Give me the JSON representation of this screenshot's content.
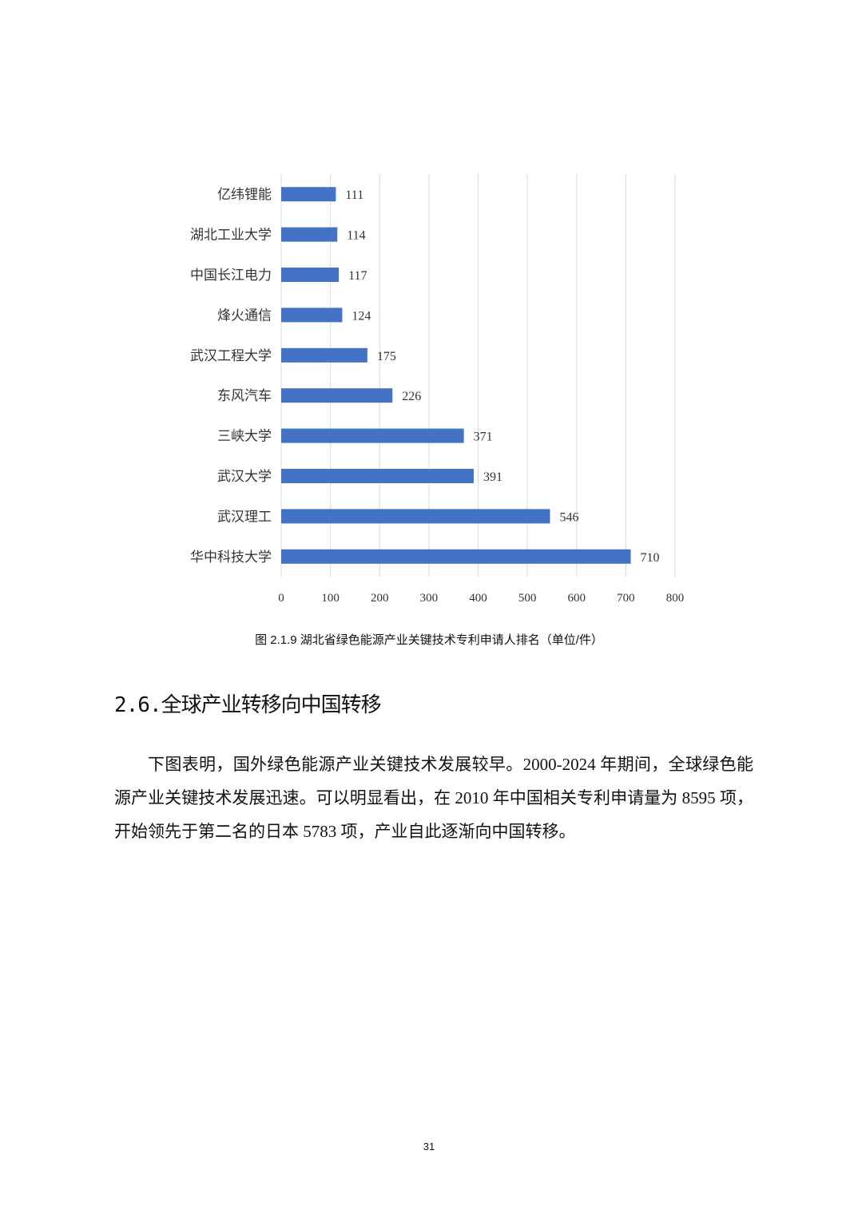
{
  "chart_data": {
    "type": "bar",
    "orientation": "horizontal",
    "categories": [
      "亿纬锂能",
      "湖北工业大学",
      "中国长江电力",
      "烽火通信",
      "武汉工程大学",
      "东风汽车",
      "三峡大学",
      "武汉大学",
      "武汉理工",
      "华中科技大学"
    ],
    "values": [
      111,
      114,
      117,
      124,
      175,
      226,
      371,
      391,
      546,
      710
    ],
    "xlim": [
      0,
      800
    ],
    "xticks": [
      "0",
      "100",
      "200",
      "300",
      "400",
      "500",
      "600",
      "700",
      "800"
    ],
    "grid": true,
    "bar_color": "#4472c4",
    "data_labels": true
  },
  "caption": "图  2.1.9 湖北省绿色能源产业关键技术专利申请人排名（单位/件）",
  "section": {
    "heading": "2.6.全球产业转移向中国转移",
    "paragraph": "下图表明，国外绿色能源产业关键技术发展较早。2000-2024 年期间，全球绿色能源产业关键技术发展迅速。可以明显看出，在 2010 年中国相关专利申请量为 8595 项，开始领先于第二名的日本 5783 项，产业自此逐渐向中国转移。"
  },
  "page_number": "31"
}
